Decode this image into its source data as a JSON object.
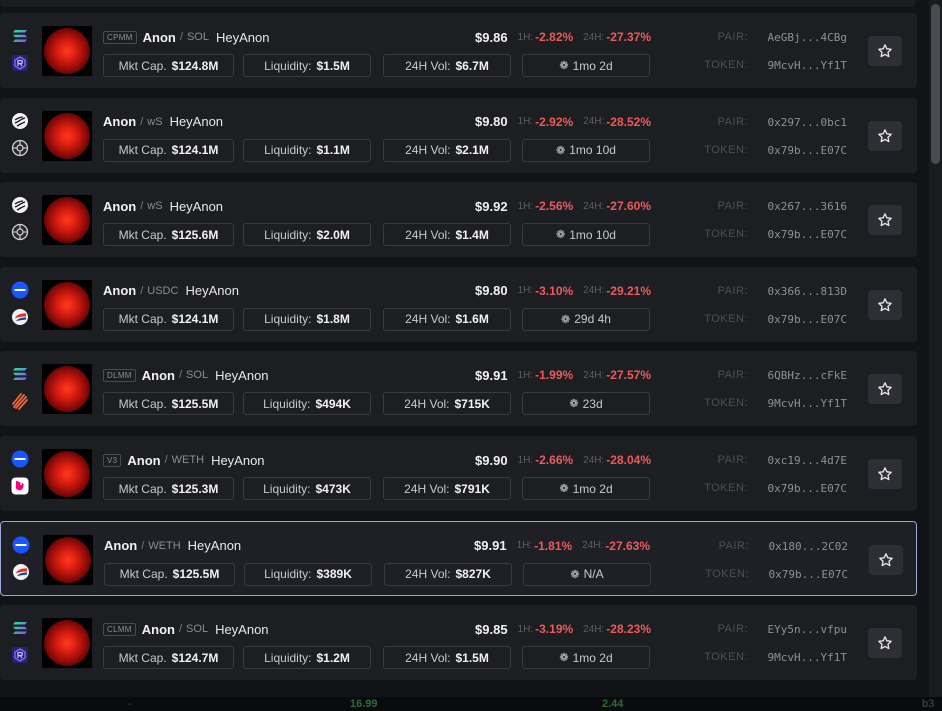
{
  "rows": [
    {
      "tag": "CPMM",
      "base": "Anon",
      "quote": "SOL",
      "name": "HeyAnon",
      "price": "$9.86",
      "h1_label": "1H:",
      "h1": "-2.82%",
      "h24_label": "24H:",
      "h24": "-27.37%",
      "mcap_label": "Mkt Cap.",
      "mcap": "$124.8M",
      "liq_label": "Liquidity:",
      "liq": "$1.5M",
      "vol_label": "24H Vol:",
      "vol": "$6.7M",
      "age": "1mo 2d",
      "pair_label": "PAIR:",
      "pair": "AeGBj...4CBg",
      "token_label": "TOKEN:",
      "token": "9McvH...Yf1T",
      "chain_icon": "solana-icon",
      "dex_icon": "raydium-icon",
      "selected": false
    },
    {
      "tag": "",
      "base": "Anon",
      "quote": "wS",
      "name": "HeyAnon",
      "price": "$9.80",
      "h1_label": "1H:",
      "h1": "-2.92%",
      "h24_label": "24H:",
      "h24": "-28.52%",
      "mcap_label": "Mkt Cap.",
      "mcap": "$124.1M",
      "liq_label": "Liquidity:",
      "liq": "$1.1M",
      "vol_label": "24H Vol:",
      "vol": "$2.1M",
      "age": "1mo 10d",
      "pair_label": "PAIR:",
      "pair": "0x297...0bc1",
      "token_label": "TOKEN:",
      "token": "0x79b...E07C",
      "chain_icon": "sonic-icon",
      "dex_icon": "shadow-icon",
      "selected": false
    },
    {
      "tag": "",
      "base": "Anon",
      "quote": "wS",
      "name": "HeyAnon",
      "price": "$9.92",
      "h1_label": "1H:",
      "h1": "-2.56%",
      "h24_label": "24H:",
      "h24": "-27.60%",
      "mcap_label": "Mkt Cap.",
      "mcap": "$125.6M",
      "liq_label": "Liquidity:",
      "liq": "$2.0M",
      "vol_label": "24H Vol:",
      "vol": "$1.4M",
      "age": "1mo 10d",
      "pair_label": "PAIR:",
      "pair": "0x267...3616",
      "token_label": "TOKEN:",
      "token": "0x79b...E07C",
      "chain_icon": "sonic-icon",
      "dex_icon": "shadow-icon",
      "selected": false
    },
    {
      "tag": "",
      "base": "Anon",
      "quote": "USDC",
      "name": "HeyAnon",
      "price": "$9.80",
      "h1_label": "1H:",
      "h1": "-3.10%",
      "h24_label": "24H:",
      "h24": "-29.21%",
      "mcap_label": "Mkt Cap.",
      "mcap": "$124.1M",
      "liq_label": "Liquidity:",
      "liq": "$1.8M",
      "vol_label": "24H Vol:",
      "vol": "$1.6M",
      "age": "29d 4h",
      "pair_label": "PAIR:",
      "pair": "0x366...813D",
      "token_label": "TOKEN:",
      "token": "0x79b...E07C",
      "chain_icon": "base-icon",
      "dex_icon": "aerodrome-icon",
      "selected": false
    },
    {
      "tag": "DLMM",
      "base": "Anon",
      "quote": "SOL",
      "name": "HeyAnon",
      "price": "$9.91",
      "h1_label": "1H:",
      "h1": "-1.99%",
      "h24_label": "24H:",
      "h24": "-27.57%",
      "mcap_label": "Mkt Cap.",
      "mcap": "$125.5M",
      "liq_label": "Liquidity:",
      "liq": "$494K",
      "vol_label": "24H Vol:",
      "vol": "$715K",
      "age": "23d",
      "pair_label": "PAIR:",
      "pair": "6QBHz...cFkE",
      "token_label": "TOKEN:",
      "token": "9McvH...Yf1T",
      "chain_icon": "solana-icon",
      "dex_icon": "meteora-icon",
      "selected": false
    },
    {
      "tag": "V3",
      "base": "Anon",
      "quote": "WETH",
      "name": "HeyAnon",
      "price": "$9.90",
      "h1_label": "1H:",
      "h1": "-2.66%",
      "h24_label": "24H:",
      "h24": "-28.04%",
      "mcap_label": "Mkt Cap.",
      "mcap": "$125.3M",
      "liq_label": "Liquidity:",
      "liq": "$473K",
      "vol_label": "24H Vol:",
      "vol": "$791K",
      "age": "1mo 2d",
      "pair_label": "PAIR:",
      "pair": "0xc19...4d7E",
      "token_label": "TOKEN:",
      "token": "0x79b...E07C",
      "chain_icon": "base-icon",
      "dex_icon": "uniswap-icon",
      "selected": false
    },
    {
      "tag": "",
      "base": "Anon",
      "quote": "WETH",
      "name": "HeyAnon",
      "price": "$9.91",
      "h1_label": "1H:",
      "h1": "-1.81%",
      "h24_label": "24H:",
      "h24": "-27.63%",
      "mcap_label": "Mkt Cap.",
      "mcap": "$125.5M",
      "liq_label": "Liquidity:",
      "liq": "$389K",
      "vol_label": "24H Vol:",
      "vol": "$827K",
      "age": "N/A",
      "pair_label": "PAIR:",
      "pair": "0x180...2C02",
      "token_label": "TOKEN:",
      "token": "0x79b...E07C",
      "chain_icon": "base-icon",
      "dex_icon": "aerodrome-icon",
      "selected": true
    },
    {
      "tag": "CLMM",
      "base": "Anon",
      "quote": "SOL",
      "name": "HeyAnon",
      "price": "$9.85",
      "h1_label": "1H:",
      "h1": "-3.19%",
      "h24_label": "24H:",
      "h24": "-28.23%",
      "mcap_label": "Mkt Cap.",
      "mcap": "$124.7M",
      "liq_label": "Liquidity:",
      "liq": "$1.2M",
      "vol_label": "24H Vol:",
      "vol": "$1.5M",
      "age": "1mo 2d",
      "pair_label": "PAIR:",
      "pair": "EYy5n...vfpu",
      "token_label": "TOKEN:",
      "token": "9McvH...Yf1T",
      "chain_icon": "solana-icon",
      "dex_icon": "raydium-icon",
      "selected": false
    }
  ],
  "bottom_bar": {
    "v1": "-",
    "v2": "16.99",
    "v3": "2.44",
    "v4": "b3"
  },
  "colors": {
    "negative": "#ee5a5a",
    "selected_border": "#9aa9d6",
    "card_bg": "#1d1e22",
    "page_bg": "#121316"
  }
}
